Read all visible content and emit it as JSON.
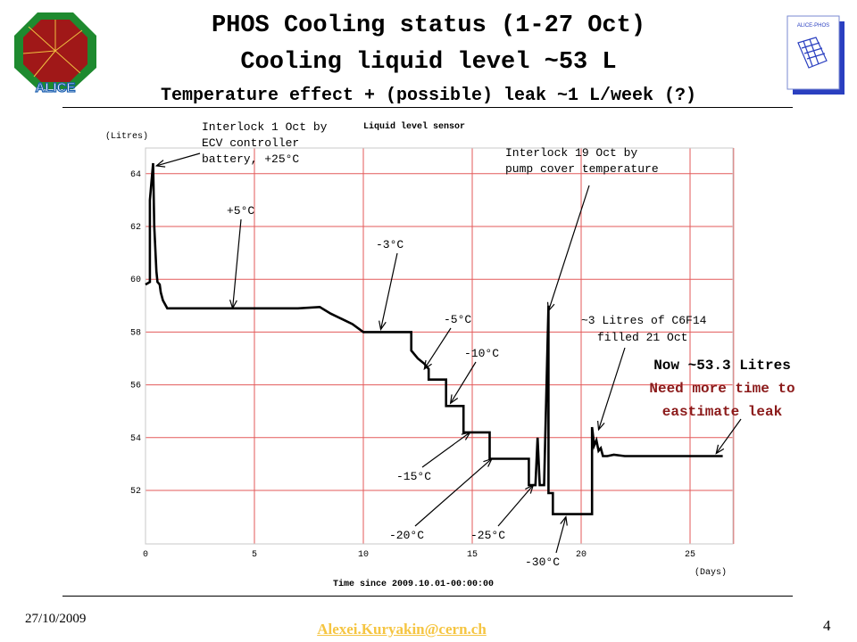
{
  "slide": {
    "title_line1": "PHOS Cooling status (1-27 Oct)",
    "title_line2": "Cooling liquid level ~53 L",
    "title_line3": "Temperature effect + (possible) leak ~1 L/week (?)",
    "footer_date": "27/10/2009",
    "footer_email": "Alexei.Kuryakin@cern.ch",
    "page_number": "4",
    "logo_left_text": "ALICE",
    "logo_right_text": "ALICE-PHOS"
  },
  "colors": {
    "grid": "#e35a5a",
    "line": "#000000",
    "highlight_text": "#8b1a1a",
    "email": "#f5c542"
  },
  "chart_data": {
    "type": "line",
    "title": "Liquid level sensor",
    "ylabel": "(Litres)",
    "xlabel": "Time since 2009.10.01-00:00:00",
    "xunit": "(Days)",
    "xlim": [
      0,
      28
    ],
    "ylim": [
      50,
      65
    ],
    "grid": true,
    "x_ticks": [
      "0",
      "5",
      "10",
      "15",
      "20",
      "25"
    ],
    "y_ticks": [
      "52",
      "54",
      "56",
      "58",
      "60",
      "62",
      "64"
    ],
    "series": [
      {
        "x": [
          0.0,
          0.2,
          0.2,
          0.35,
          0.4,
          0.5,
          0.55,
          0.65,
          0.7,
          0.8,
          1.0,
          1.5,
          2.0,
          3.0,
          4.0,
          5.0,
          6.0,
          7.0,
          8.0,
          8.5,
          9.0,
          9.5,
          10.0,
          10.4,
          10.8,
          11.5,
          12.0,
          12.2,
          12.2,
          12.5,
          12.8,
          13.0,
          13.0,
          13.8,
          13.8,
          14.6,
          14.6,
          15.8,
          15.8,
          17.6,
          17.6,
          17.9,
          18.0,
          18.1,
          18.3,
          18.5,
          18.5,
          18.7,
          18.7,
          20.5,
          20.5,
          20.6,
          20.7,
          20.8,
          20.9,
          21.0,
          21.2,
          21.5,
          22.0,
          23.0,
          24.0,
          25.0,
          26.5
        ],
        "y": [
          59.8,
          59.9,
          63.0,
          64.4,
          62.0,
          60.3,
          59.9,
          59.8,
          59.5,
          59.2,
          58.9,
          58.9,
          58.9,
          58.9,
          58.9,
          58.9,
          58.9,
          58.9,
          58.95,
          58.7,
          58.5,
          58.3,
          58.0,
          58.0,
          58.0,
          58.0,
          58.0,
          58.0,
          57.3,
          57.0,
          56.8,
          56.6,
          56.2,
          56.2,
          55.2,
          55.2,
          54.2,
          54.2,
          53.2,
          53.2,
          52.2,
          52.2,
          54.0,
          52.2,
          52.2,
          59.0,
          51.9,
          51.9,
          51.1,
          51.1,
          54.4,
          53.7,
          53.9,
          53.5,
          53.6,
          53.3,
          53.3,
          53.35,
          53.3,
          53.3,
          53.3,
          53.3,
          53.3
        ]
      }
    ],
    "annotations": [
      {
        "text_lines": [
          "Interlock 1 Oct by",
          "ECV controller",
          "battery, +25°C"
        ]
      },
      {
        "text": "+5°C"
      },
      {
        "text": "-3°C"
      },
      {
        "text": "-5°C"
      },
      {
        "text": "-10°C"
      },
      {
        "text": "-15°C"
      },
      {
        "text": "-20°C"
      },
      {
        "text": "-25°C"
      },
      {
        "text": "-30°C"
      },
      {
        "text_lines": [
          "Interlock 19 Oct by",
          "pump cover temperature"
        ]
      },
      {
        "text_lines": [
          "~3 Litres of C6F14",
          "filled 21 Oct"
        ]
      },
      {
        "text_lines": [
          "Now ~53.3 Litres",
          "Need more time to",
          "eastimate leak"
        ]
      }
    ]
  }
}
